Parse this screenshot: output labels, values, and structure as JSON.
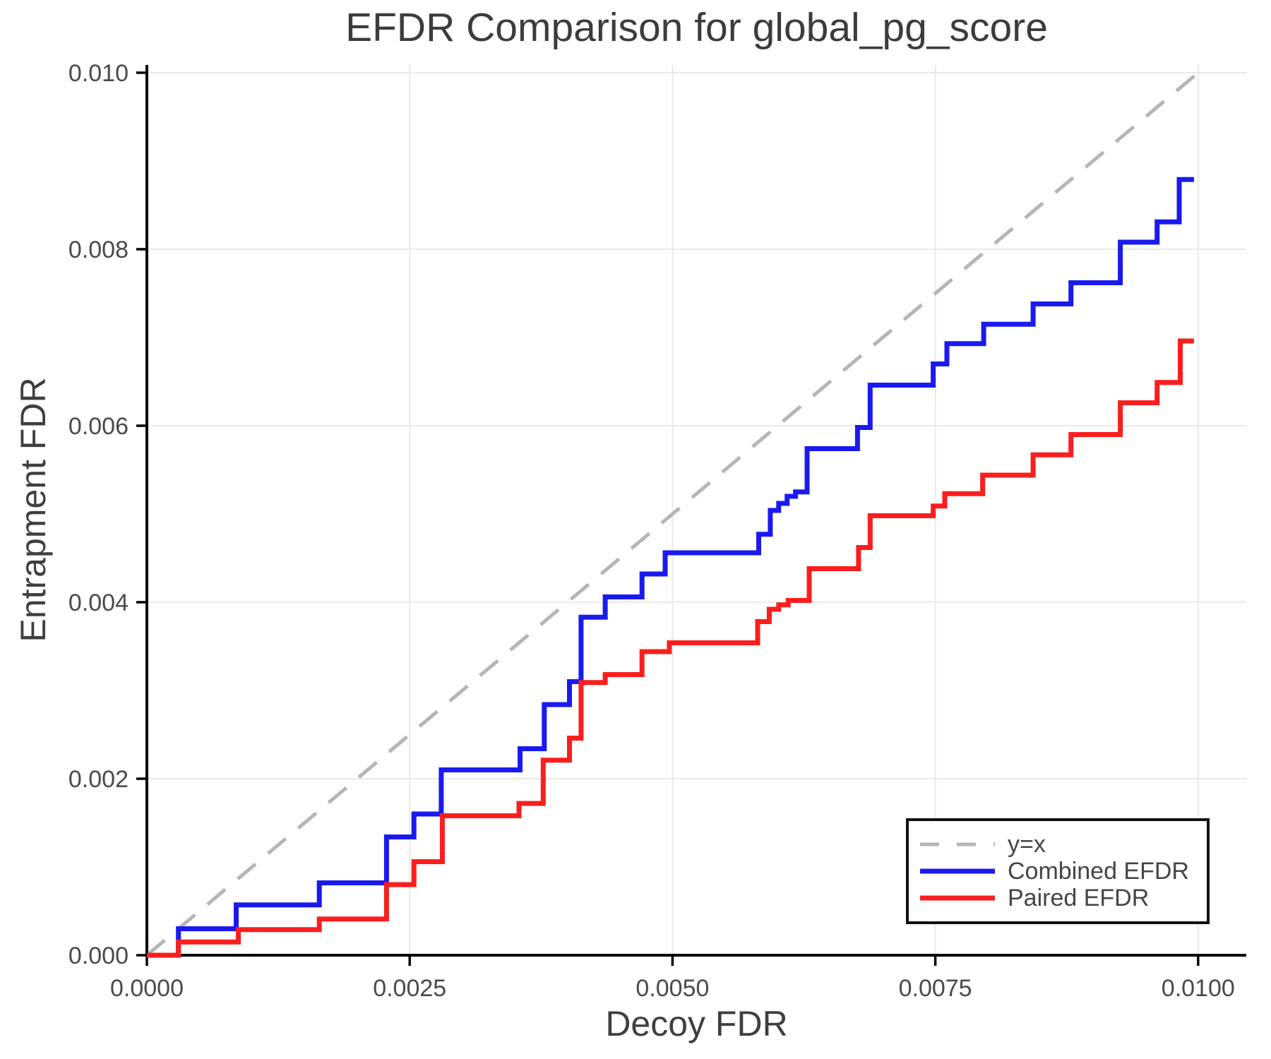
{
  "chart_data": {
    "type": "line",
    "subtype": "step-post",
    "title": "EFDR Comparison for global_pg_score",
    "xlabel": "Decoy FDR",
    "ylabel": "Entrapment FDR",
    "xlim": [
      0,
      0.010458
    ],
    "ylim": [
      0,
      0.010088
    ],
    "grid": true,
    "x_ticks": {
      "values": [
        0.0,
        0.0025,
        0.005,
        0.0075,
        0.01
      ],
      "labels": [
        "0.0000",
        "0.0025",
        "0.0050",
        "0.0075",
        "0.0100"
      ]
    },
    "y_ticks": {
      "values": [
        0.0,
        0.002,
        0.004,
        0.006,
        0.008,
        0.01
      ],
      "labels": [
        "0.000",
        "0.002",
        "0.004",
        "0.006",
        "0.008",
        "0.010"
      ]
    },
    "colors": {
      "axis": "#000000",
      "grid": "#e9e9e9",
      "identity": "#b5b5b5",
      "combined": "#1a1af0",
      "paired": "#fa1e1e",
      "text": "#4a4a4a"
    },
    "identity_line": {
      "label": "y=x",
      "from": [
        0,
        0
      ],
      "to": [
        0.01,
        0.01
      ],
      "style": "dashed"
    },
    "legend": {
      "position": "lower right",
      "items": [
        {
          "label": "y=x",
          "color": "#b5b5b5",
          "dashed": true
        },
        {
          "label": "Combined EFDR",
          "color": "#1a1af0",
          "dashed": false
        },
        {
          "label": "Paired EFDR",
          "color": "#fa1e1e",
          "dashed": false
        }
      ]
    },
    "series": [
      {
        "name": "Combined EFDR",
        "color": "#1a1af0",
        "start": [
          0,
          0
        ],
        "end_x": 0.00996,
        "points": [
          [
            0.0003,
            0.0003
          ],
          [
            0.00085,
            0.00057
          ],
          [
            0.00164,
            0.00082
          ],
          [
            0.00228,
            0.00134
          ],
          [
            0.00254,
            0.0016
          ],
          [
            0.0028,
            0.0021
          ],
          [
            0.00355,
            0.00234
          ],
          [
            0.00378,
            0.00284
          ],
          [
            0.00402,
            0.0031
          ],
          [
            0.00413,
            0.00383
          ],
          [
            0.00436,
            0.00406
          ],
          [
            0.00471,
            0.00432
          ],
          [
            0.00493,
            0.00456
          ],
          [
            0.00582,
            0.00477
          ],
          [
            0.00593,
            0.00504
          ],
          [
            0.00601,
            0.00512
          ],
          [
            0.00609,
            0.0052
          ],
          [
            0.00617,
            0.00525
          ],
          [
            0.00628,
            0.00574
          ],
          [
            0.00676,
            0.00598
          ],
          [
            0.00688,
            0.00646
          ],
          [
            0.00748,
            0.0067
          ],
          [
            0.00761,
            0.00693
          ],
          [
            0.00796,
            0.00715
          ],
          [
            0.00843,
            0.00738
          ],
          [
            0.00879,
            0.00762
          ],
          [
            0.00926,
            0.00808
          ],
          [
            0.00961,
            0.00831
          ],
          [
            0.00982,
            0.00879
          ]
        ]
      },
      {
        "name": "Paired EFDR",
        "color": "#fa1e1e",
        "start": [
          0,
          0
        ],
        "end_x": 0.00996,
        "points": [
          [
            0.0003,
            0.00015
          ],
          [
            0.00087,
            0.00029
          ],
          [
            0.00164,
            0.00041
          ],
          [
            0.00228,
            0.0008
          ],
          [
            0.00254,
            0.00106
          ],
          [
            0.00281,
            0.00158
          ],
          [
            0.00354,
            0.00172
          ],
          [
            0.00377,
            0.00221
          ],
          [
            0.00402,
            0.00246
          ],
          [
            0.00413,
            0.00309
          ],
          [
            0.00436,
            0.00318
          ],
          [
            0.00471,
            0.00344
          ],
          [
            0.00497,
            0.00354
          ],
          [
            0.00581,
            0.00378
          ],
          [
            0.00592,
            0.00392
          ],
          [
            0.00601,
            0.00397
          ],
          [
            0.0061,
            0.00402
          ],
          [
            0.0063,
            0.00438
          ],
          [
            0.00677,
            0.00462
          ],
          [
            0.00688,
            0.00498
          ],
          [
            0.00748,
            0.00509
          ],
          [
            0.00759,
            0.00523
          ],
          [
            0.00795,
            0.00544
          ],
          [
            0.00843,
            0.00567
          ],
          [
            0.00879,
            0.0059
          ],
          [
            0.00926,
            0.00626
          ],
          [
            0.00961,
            0.00649
          ],
          [
            0.00983,
            0.00696
          ]
        ]
      }
    ]
  }
}
